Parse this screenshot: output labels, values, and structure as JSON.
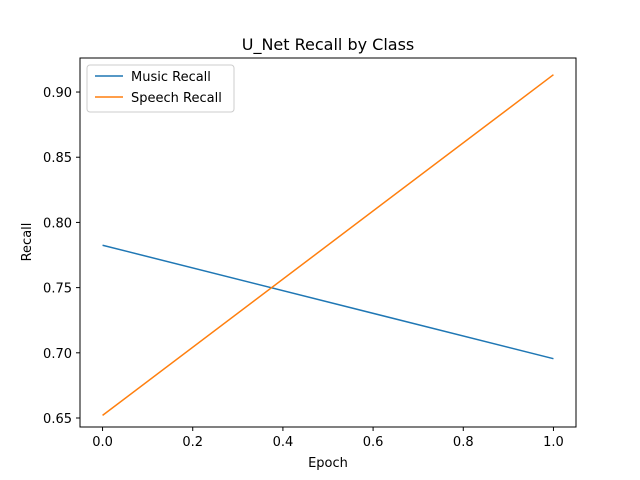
{
  "chart_data": {
    "type": "line",
    "title": "U_Net Recall by Class",
    "xlabel": "Epoch",
    "ylabel": "Recall",
    "x": [
      0.0,
      1.0
    ],
    "xlim": [
      -0.05,
      1.05
    ],
    "ylim": [
      0.6431,
      0.9261
    ],
    "xticks": [
      "0.0",
      "0.2",
      "0.4",
      "0.6",
      "0.8",
      "1.0"
    ],
    "yticks": [
      "0.65",
      "0.70",
      "0.75",
      "0.80",
      "0.85",
      "0.90"
    ],
    "grid": false,
    "legend_position": "upper-left",
    "series": [
      {
        "name": "Music Recall",
        "color": "#1f77b4",
        "values": [
          0.7825,
          0.6955
        ]
      },
      {
        "name": "Speech Recall",
        "color": "#ff7f0e",
        "values": [
          0.652,
          0.9133
        ]
      }
    ]
  }
}
